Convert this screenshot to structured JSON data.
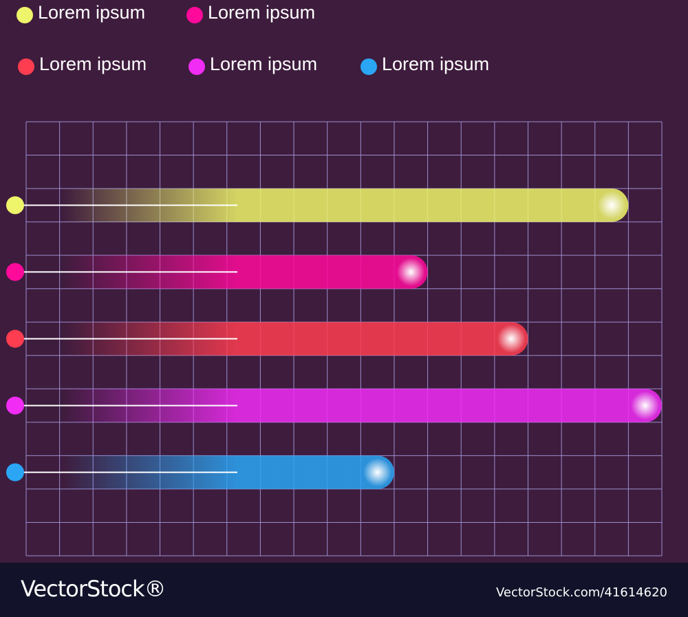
{
  "chart_data": {
    "type": "bar",
    "orientation": "horizontal",
    "series": [
      {
        "name": "Lorem ipsum",
        "color": "#eef56a",
        "values": [
          18
        ]
      },
      {
        "name": "Lorem ipsum",
        "color": "#ff0a9b",
        "values": [
          12
        ]
      },
      {
        "name": "Lorem ipsum",
        "color": "#ff3d50",
        "values": [
          15
        ]
      },
      {
        "name": "Lorem ipsum",
        "color": "#f12cf5",
        "values": [
          19
        ]
      },
      {
        "name": "Lorem ipsum",
        "color": "#2aa6f5",
        "values": [
          11
        ]
      }
    ],
    "xlim": [
      0,
      19
    ],
    "xticks": [
      0,
      1,
      2,
      3,
      4,
      5,
      6,
      7,
      8,
      9,
      10,
      11,
      12,
      13,
      14,
      15,
      16,
      17,
      18,
      19
    ],
    "grid": true
  },
  "watermark": {
    "brand": "VectorStock®",
    "id": "VectorStock.com/41614620"
  }
}
